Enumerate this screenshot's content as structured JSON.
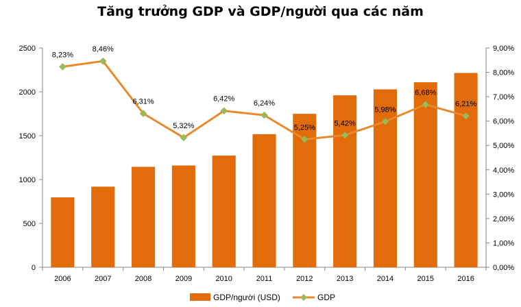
{
  "chart_data": {
    "type": "bar+line",
    "title": "Tăng trưởng GDP và GDP/người  qua các năm",
    "categories": [
      "2006",
      "2007",
      "2008",
      "2009",
      "2010",
      "2011",
      "2012",
      "2013",
      "2014",
      "2015",
      "2016"
    ],
    "series": [
      {
        "name": "GDP/người (USD)",
        "type": "bar",
        "axis": "left",
        "color": "#e36c0a",
        "values": [
          797,
          919,
          1145,
          1160,
          1273,
          1517,
          1749,
          1960,
          2028,
          2109,
          2215
        ]
      },
      {
        "name": "GDP",
        "type": "line",
        "axis": "right",
        "color": "#e9892c",
        "marker_color": "#9bbb59",
        "values": [
          8.23,
          8.46,
          6.31,
          5.32,
          6.42,
          6.24,
          5.25,
          5.42,
          5.98,
          6.68,
          6.21
        ],
        "labels": [
          "8,23%",
          "8,46%",
          "6,31%",
          "5,32%",
          "6,42%",
          "6,24%",
          "5,25%",
          "5,42%",
          "5,98%",
          "6,68%",
          "6,21%"
        ]
      }
    ],
    "y_left": {
      "ylim": [
        0,
        2500
      ],
      "ticks": [
        "0",
        "500",
        "1000",
        "1500",
        "2000",
        "2500"
      ]
    },
    "y_right": {
      "ylim": [
        0,
        9
      ],
      "ticks": [
        "0,00%",
        "1,00%",
        "2,00%",
        "3,00%",
        "4,00%",
        "5,00%",
        "6,00%",
        "7,00%",
        "8,00%",
        "9,00%"
      ]
    },
    "grid": false,
    "legend": {
      "position": "bottom",
      "items": [
        "GDP/người (USD)",
        "GDP"
      ]
    }
  }
}
